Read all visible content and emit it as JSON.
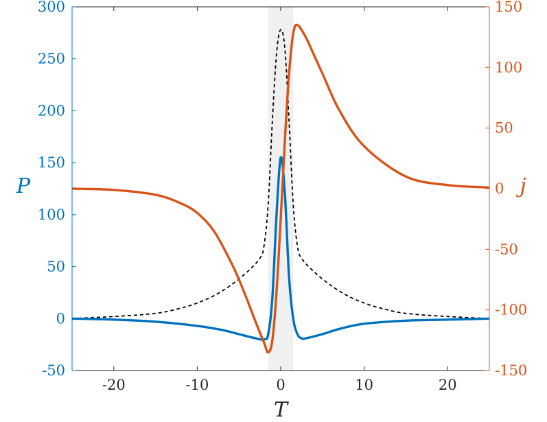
{
  "chart_data": {
    "type": "line",
    "xlabel": "T",
    "ylabel_left": "P",
    "ylabel_right": "j",
    "xlim": [
      -25,
      25
    ],
    "ylim_left": [
      -50,
      300
    ],
    "ylim_right": [
      -150,
      150
    ],
    "x_ticks": [
      "-20",
      "-10",
      "0",
      "10",
      "20"
    ],
    "y_left_ticks": [
      "-50",
      "0",
      "50",
      "100",
      "150",
      "200",
      "250",
      "300"
    ],
    "y_right_ticks": [
      "-150",
      "-100",
      "-50",
      "0",
      "50",
      "100",
      "150"
    ],
    "shaded_region": [
      -1.5,
      1.5
    ],
    "colors": {
      "left_axis": "#0072BD",
      "right_axis": "#D95319",
      "shade": "#F0F0F0",
      "dashed": "#000000"
    },
    "series": [
      {
        "axis": "left",
        "style": "solid",
        "color": "#0072BD",
        "x": [
          -25,
          -20,
          -15,
          -10,
          -7,
          -5,
          -3,
          -2,
          -1.5,
          -1,
          -0.5,
          0,
          0.5,
          1,
          1.5,
          2,
          2.5,
          3,
          5,
          7,
          10,
          15,
          20,
          25
        ],
        "y": [
          0,
          -1,
          -3,
          -7,
          -11,
          -15,
          -19,
          -20,
          -15,
          20,
          100,
          155,
          120,
          40,
          0,
          -15,
          -19,
          -19,
          -15,
          -10,
          -5,
          -2,
          -1,
          0
        ]
      },
      {
        "axis": "right",
        "style": "solid",
        "color": "#D95319",
        "x": [
          -25,
          -20,
          -15,
          -12,
          -10,
          -8,
          -6,
          -5,
          -4,
          -3,
          -2,
          -1.5,
          -1,
          -0.5,
          0,
          0.5,
          1,
          1.5,
          2,
          3,
          4,
          5,
          7,
          10,
          15,
          20,
          25
        ],
        "y": [
          0,
          -1,
          -5,
          -12,
          -20,
          -35,
          -60,
          -75,
          -92,
          -110,
          -127,
          -135,
          -125,
          -85,
          -25,
          40,
          95,
          128,
          135,
          125,
          110,
          95,
          65,
          35,
          10,
          3,
          1
        ]
      },
      {
        "axis": "left",
        "style": "dashed",
        "color": "#000000",
        "x": [
          -25,
          -20,
          -15,
          -12,
          -10,
          -8,
          -6,
          -4,
          -2.5,
          -2,
          -1.5,
          -1,
          -0.5,
          0,
          0.5,
          1,
          1.5,
          2,
          2.5,
          4,
          6,
          8,
          10,
          12,
          15,
          20,
          25
        ],
        "y": [
          0,
          2,
          5,
          10,
          15,
          22,
          32,
          45,
          58,
          70,
          110,
          190,
          255,
          278,
          260,
          190,
          110,
          70,
          58,
          45,
          32,
          22,
          15,
          10,
          5,
          2,
          0
        ]
      }
    ]
  }
}
